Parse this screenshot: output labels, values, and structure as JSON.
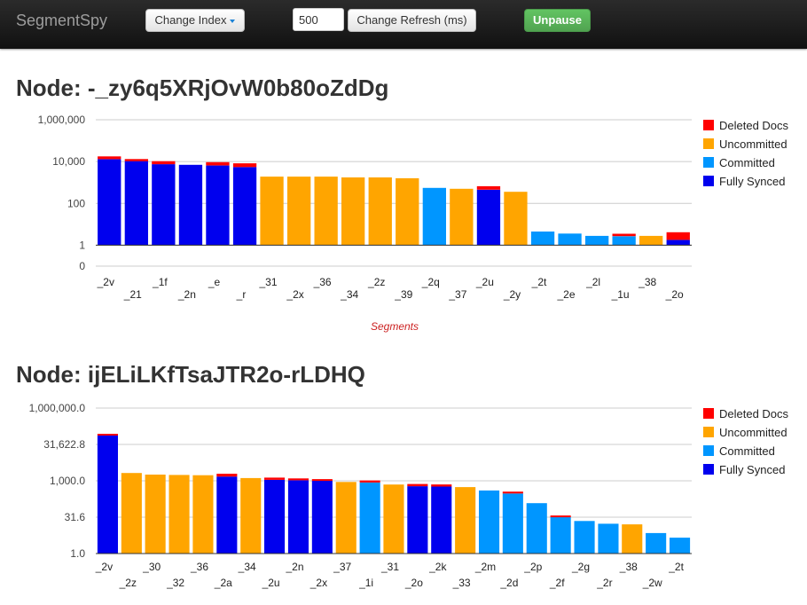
{
  "navbar": {
    "brand": "SegmentSpy",
    "change_index_label": "Change Index",
    "refresh_value": "500",
    "change_refresh_label": "Change Refresh (ms)",
    "unpause_label": "Unpause"
  },
  "colors": {
    "deleted": "#ff0000",
    "uncommitted": "#ffa500",
    "committed": "#0096ff",
    "fully_synced": "#0000ee"
  },
  "nodes": [
    {
      "title": "Node: -_zy6q5XRjOvW0b80oZdDg"
    },
    {
      "title": "Node: ijELiLKfTsaJTR2o-rLDHQ"
    }
  ],
  "chart_data": [
    {
      "type": "bar",
      "scale": "log",
      "stacked": true,
      "grid": true,
      "legend_position": "right",
      "xlabel": "Segments",
      "ylim": [
        0,
        1000000
      ],
      "yticks": [
        "0",
        "1",
        "100",
        "10,000",
        "1,000,000"
      ],
      "categories": [
        "_2v",
        "_21",
        "_1f",
        "_2n",
        "_e",
        "_r",
        "_31",
        "_2x",
        "_36",
        "_34",
        "_2z",
        "_39",
        "_2q",
        "_37",
        "_2u",
        "_2y",
        "_2t",
        "_2e",
        "_2l",
        "_1u",
        "_38",
        "_2o"
      ],
      "status": [
        "fully_synced",
        "fully_synced",
        "fully_synced",
        "fully_synced",
        "fully_synced",
        "fully_synced",
        "uncommitted",
        "uncommitted",
        "uncommitted",
        "uncommitted",
        "uncommitted",
        "uncommitted",
        "committed",
        "uncommitted",
        "fully_synced",
        "uncommitted",
        "committed",
        "committed",
        "committed",
        "committed",
        "uncommitted",
        "fully_synced"
      ],
      "series": [
        {
          "name": "Deleted Docs",
          "values": [
            3000,
            1500,
            2000,
            0,
            2000,
            2000,
            0,
            0,
            0,
            0,
            0,
            0,
            0,
            0,
            150,
            0,
            0,
            0,
            0,
            0.5,
            0,
            2
          ]
        },
        {
          "name": "Docs",
          "values": [
            13000,
            10500,
            7500,
            7000,
            6500,
            5500,
            1900,
            1900,
            1900,
            1750,
            1750,
            1600,
            550,
            500,
            450,
            360,
            4.5,
            3.6,
            2.8,
            2.7,
            2.8,
            1.8
          ]
        }
      ],
      "legend": [
        "Deleted Docs",
        "Uncommitted",
        "Committed",
        "Fully Synced"
      ]
    },
    {
      "type": "bar",
      "scale": "log",
      "stacked": true,
      "grid": true,
      "legend_position": "right",
      "ylim": [
        1,
        1000000
      ],
      "yticks": [
        "1.0",
        "31.6",
        "1,000.0",
        "31,622.8",
        "1,000,000.0"
      ],
      "categories": [
        "_2v",
        "_2z",
        "_30",
        "_32",
        "_36",
        "_2a",
        "_34",
        "_2u",
        "_2n",
        "_2x",
        "_37",
        "_1i",
        "_31",
        "_2o",
        "_2k",
        "_33",
        "_2m",
        "_2d",
        "_2p",
        "_2f",
        "_2g",
        "_2r",
        "_38",
        "_2w",
        "_2t"
      ],
      "status": [
        "fully_synced",
        "uncommitted",
        "uncommitted",
        "uncommitted",
        "uncommitted",
        "fully_synced",
        "uncommitted",
        "fully_synced",
        "fully_synced",
        "fully_synced",
        "uncommitted",
        "committed",
        "uncommitted",
        "fully_synced",
        "fully_synced",
        "uncommitted",
        "committed",
        "committed",
        "committed",
        "committed",
        "committed",
        "committed",
        "uncommitted",
        "committed",
        "committed"
      ],
      "series": [
        {
          "name": "Deleted Docs",
          "values": [
            5000,
            0,
            0,
            0,
            0,
            300,
            0,
            150,
            100,
            80,
            0,
            100,
            0,
            80,
            70,
            0,
            0,
            30,
            0,
            2,
            0,
            0,
            0,
            0,
            0
          ]
        },
        {
          "name": "Docs",
          "values": [
            75000,
            2100,
            1800,
            1750,
            1700,
            1500,
            1300,
            1100,
            1050,
            1000,
            900,
            850,
            700,
            600,
            580,
            550,
            400,
            300,
            120,
            32,
            22,
            17,
            16,
            7,
            4.5
          ]
        }
      ],
      "legend": [
        "Deleted Docs",
        "Uncommitted",
        "Committed",
        "Fully Synced"
      ]
    }
  ]
}
